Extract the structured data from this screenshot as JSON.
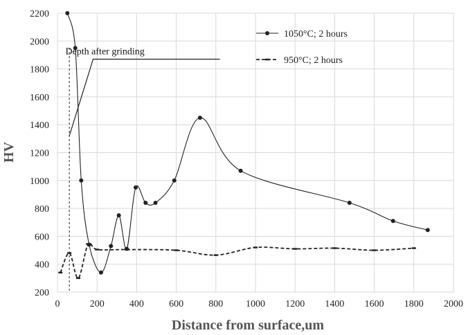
{
  "chart_data": {
    "type": "line",
    "xlabel": "Distance from surface,um",
    "ylabel": "HV",
    "xlim": [
      0,
      2000
    ],
    "ylim": [
      200,
      2200
    ],
    "x_ticks": [
      0,
      200,
      400,
      600,
      800,
      1000,
      1200,
      1400,
      1600,
      1800,
      2000
    ],
    "y_ticks": [
      200,
      400,
      600,
      800,
      1000,
      1200,
      1400,
      1600,
      1800,
      2000,
      2200
    ],
    "grid": "horizontal",
    "legend_position": "top-right",
    "series": [
      {
        "name": "1050°C; 2 hours",
        "style": "solid",
        "marker": "circle",
        "color": "#222222",
        "points": [
          {
            "x": 50,
            "y": 2200
          },
          {
            "x": 90,
            "y": 1950
          },
          {
            "x": 120,
            "y": 1000
          },
          {
            "x": 160,
            "y": 540
          },
          {
            "x": 220,
            "y": 340
          },
          {
            "x": 270,
            "y": 530
          },
          {
            "x": 310,
            "y": 750
          },
          {
            "x": 350,
            "y": 510
          },
          {
            "x": 395,
            "y": 950
          },
          {
            "x": 445,
            "y": 840
          },
          {
            "x": 495,
            "y": 840
          },
          {
            "x": 590,
            "y": 1000
          },
          {
            "x": 720,
            "y": 1450
          },
          {
            "x": 925,
            "y": 1070
          },
          {
            "x": 1475,
            "y": 840
          },
          {
            "x": 1695,
            "y": 710
          },
          {
            "x": 1870,
            "y": 645
          }
        ]
      },
      {
        "name": "950°C; 2 hours",
        "style": "dashed",
        "marker": "dash",
        "color": "#222222",
        "points": [
          {
            "x": 15,
            "y": 340
          },
          {
            "x": 60,
            "y": 480
          },
          {
            "x": 105,
            "y": 300
          },
          {
            "x": 155,
            "y": 545
          },
          {
            "x": 200,
            "y": 505
          },
          {
            "x": 350,
            "y": 505
          },
          {
            "x": 600,
            "y": 500
          },
          {
            "x": 800,
            "y": 465
          },
          {
            "x": 1000,
            "y": 520
          },
          {
            "x": 1200,
            "y": 510
          },
          {
            "x": 1400,
            "y": 515
          },
          {
            "x": 1600,
            "y": 500
          },
          {
            "x": 1800,
            "y": 515
          }
        ]
      }
    ],
    "annotations": [
      {
        "text": "Depth after grinding",
        "vertical_line_x": 60,
        "leader_from": {
          "x": 60,
          "y": 1320
        },
        "leader_elbow": {
          "x": 180,
          "y": 1870
        },
        "leader_to": {
          "x": 820,
          "y": 1870
        }
      }
    ]
  }
}
